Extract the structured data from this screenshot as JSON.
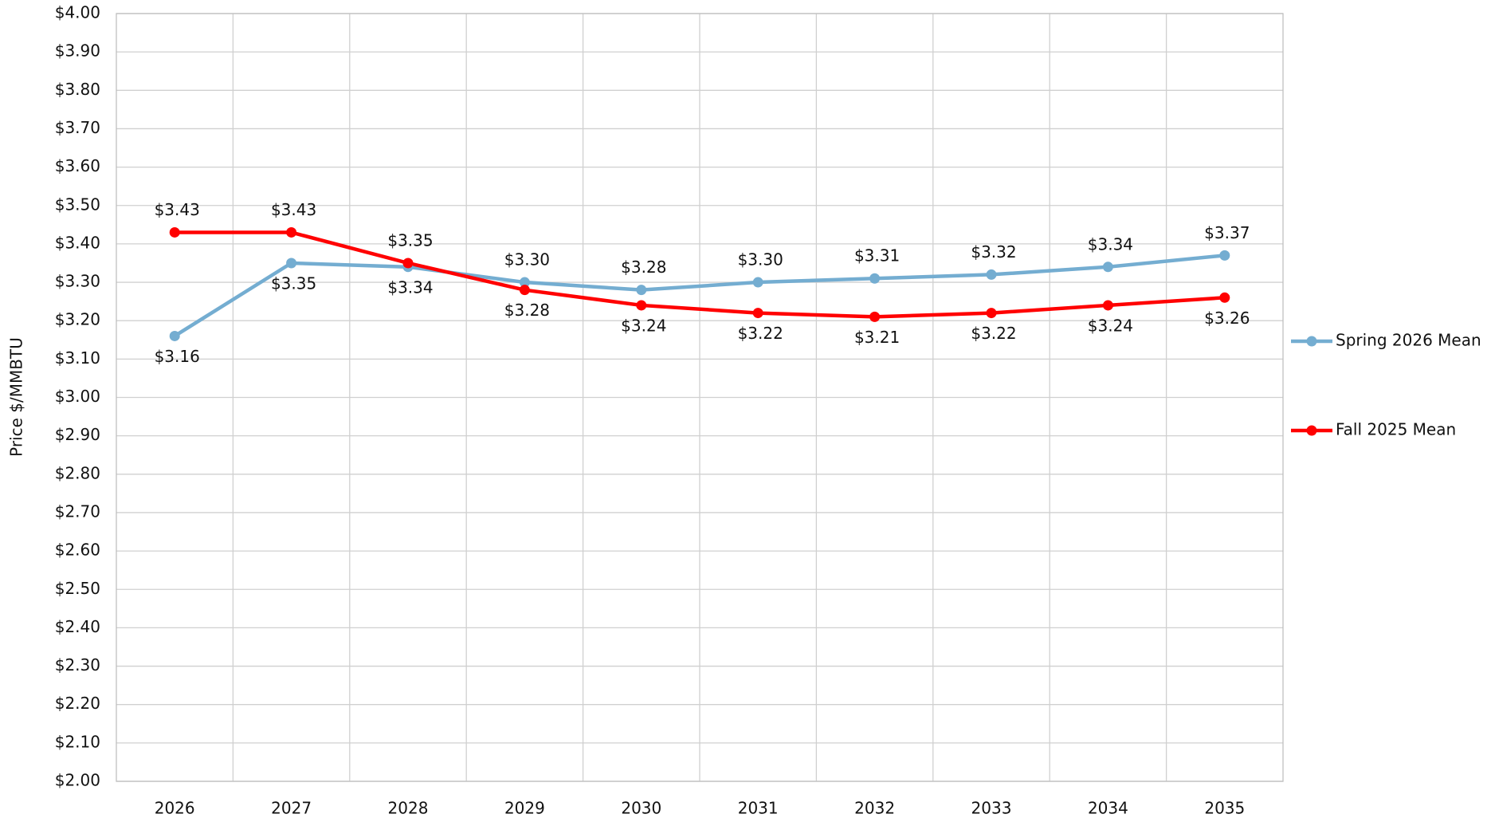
{
  "chart_data": {
    "type": "line",
    "y_label": "Price $/MMBTU",
    "categories": [
      "2026",
      "2027",
      "2028",
      "2029",
      "2030",
      "2031",
      "2032",
      "2033",
      "2034",
      "2035"
    ],
    "series": [
      {
        "name": "Spring 2026 Mean",
        "color": "#74add1",
        "values": [
          3.16,
          3.35,
          3.34,
          3.3,
          3.28,
          3.3,
          3.31,
          3.32,
          3.34,
          3.37
        ],
        "value_labels": [
          "$3.16",
          "$3.35",
          "$3.34",
          "$3.30",
          "$3.28",
          "$3.30",
          "$3.31",
          "$3.32",
          "$3.34",
          "$3.37"
        ]
      },
      {
        "name": "Fall 2025 Mean",
        "color": "#ff0000",
        "values": [
          3.43,
          3.43,
          3.35,
          3.28,
          3.24,
          3.22,
          3.21,
          3.22,
          3.24,
          3.26
        ],
        "value_labels": [
          "$3.43",
          "$3.43",
          "$3.35",
          "$3.28",
          "$3.24",
          "$3.22",
          "$3.21",
          "$3.22",
          "$3.24",
          "$3.26"
        ]
      }
    ],
    "ylim": [
      2.0,
      4.0
    ],
    "yticks": [
      {
        "value": 2.0,
        "label": "$2.00"
      },
      {
        "value": 2.1,
        "label": "$2.10"
      },
      {
        "value": 2.2,
        "label": "$2.20"
      },
      {
        "value": 2.3,
        "label": "$2.30"
      },
      {
        "value": 2.4,
        "label": "$2.40"
      },
      {
        "value": 2.5,
        "label": "$2.50"
      },
      {
        "value": 2.6,
        "label": "$2.60"
      },
      {
        "value": 2.7,
        "label": "$2.70"
      },
      {
        "value": 2.8,
        "label": "$2.80"
      },
      {
        "value": 2.9,
        "label": "$2.90"
      },
      {
        "value": 3.0,
        "label": "$3.00"
      },
      {
        "value": 3.1,
        "label": "$3.10"
      },
      {
        "value": 3.2,
        "label": "$3.20"
      },
      {
        "value": 3.3,
        "label": "$3.30"
      },
      {
        "value": 3.4,
        "label": "$3.40"
      },
      {
        "value": 3.5,
        "label": "$3.50"
      },
      {
        "value": 3.6,
        "label": "$3.60"
      },
      {
        "value": 3.7,
        "label": "$3.70"
      },
      {
        "value": 3.8,
        "label": "$3.80"
      },
      {
        "value": 3.9,
        "label": "$3.90"
      },
      {
        "value": 4.0,
        "label": "$4.00"
      }
    ],
    "grid": true,
    "legend": "right"
  }
}
